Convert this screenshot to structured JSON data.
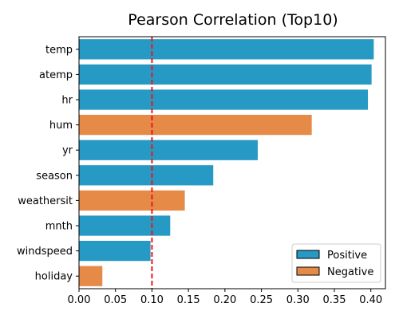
{
  "chart_data": {
    "type": "bar",
    "orientation": "horizontal",
    "title": "Pearson Correlation (Top10)",
    "xlabel": "",
    "ylabel": "",
    "xlim": [
      0,
      0.42
    ],
    "xticks": [
      "0.00",
      "0.05",
      "0.10",
      "0.15",
      "0.20",
      "0.25",
      "0.30",
      "0.35",
      "0.40"
    ],
    "grid": false,
    "threshold": {
      "value": 0.1,
      "color": "#e8191c",
      "style": "dashed"
    },
    "categories": [
      "temp",
      "atemp",
      "hr",
      "hum",
      "yr",
      "season",
      "weathersit",
      "mnth",
      "windspeed",
      "holiday"
    ],
    "values": [
      0.404,
      0.401,
      0.396,
      0.319,
      0.245,
      0.184,
      0.145,
      0.125,
      0.098,
      0.032
    ],
    "signs": [
      "Positive",
      "Positive",
      "Positive",
      "Negative",
      "Positive",
      "Positive",
      "Negative",
      "Positive",
      "Positive",
      "Negative"
    ],
    "colors": {
      "Positive": "#2699c4",
      "Negative": "#e68a47"
    },
    "legend": {
      "placement": "lower-right",
      "entries": [
        "Positive",
        "Negative"
      ]
    }
  }
}
